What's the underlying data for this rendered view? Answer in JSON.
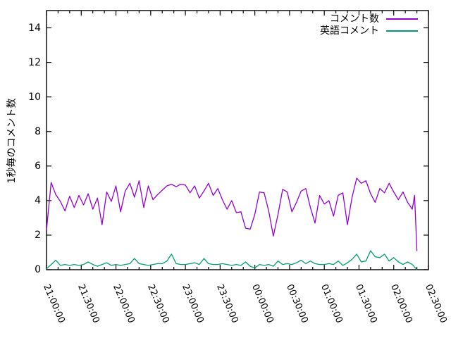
{
  "chart_data": {
    "type": "line",
    "title": "",
    "xlabel": "",
    "ylabel": "1秒毎のコメント数",
    "ylim": [
      0,
      15
    ],
    "yticks": [
      0,
      2,
      4,
      6,
      8,
      10,
      12,
      14
    ],
    "x_minutes_lim": [
      0,
      330
    ],
    "xtick_minutes": [
      0,
      30,
      60,
      90,
      120,
      150,
      180,
      210,
      240,
      270,
      300,
      330
    ],
    "xtick_labels": [
      "21:00:00",
      "21:30:00",
      "22:00:00",
      "22:30:00",
      "23:00:00",
      "23:30:00",
      "00:00:00",
      "00:30:00",
      "01:00:00",
      "01:30:00",
      "02:00:00",
      "02:30:00"
    ],
    "minor_xtick_step_min": 10,
    "grid": false,
    "legend_position": "top-right-inside",
    "axis_color": "#000000",
    "x_minutes": [
      0,
      4,
      8,
      12,
      16,
      20,
      24,
      28,
      32,
      36,
      40,
      44,
      48,
      52,
      56,
      60,
      64,
      68,
      72,
      76,
      80,
      84,
      88,
      92,
      96,
      100,
      104,
      108,
      112,
      116,
      120,
      124,
      128,
      132,
      136,
      140,
      144,
      148,
      152,
      156,
      160,
      164,
      168,
      172,
      176,
      180,
      184,
      188,
      192,
      196,
      200,
      204,
      208,
      212,
      216,
      220,
      224,
      228,
      232,
      236,
      240,
      244,
      248,
      252,
      256,
      260,
      264,
      268,
      272,
      276,
      280,
      284,
      288,
      292,
      296,
      300,
      304,
      308,
      312,
      316,
      318,
      320
    ],
    "series": [
      {
        "name": "コメント数",
        "color": "#9400d3",
        "values": [
          2.3,
          5.05,
          4.35,
          3.95,
          3.4,
          4.25,
          3.6,
          4.3,
          3.75,
          4.4,
          3.5,
          4.15,
          2.6,
          4.5,
          3.95,
          4.85,
          3.35,
          4.55,
          5.0,
          4.2,
          5.15,
          3.6,
          4.85,
          4.05,
          4.35,
          4.6,
          4.85,
          4.95,
          4.8,
          4.95,
          4.9,
          4.45,
          4.85,
          4.15,
          4.55,
          5.0,
          4.3,
          4.7,
          4.05,
          3.5,
          4.0,
          3.3,
          3.35,
          2.4,
          2.35,
          3.2,
          4.5,
          4.45,
          3.4,
          1.95,
          3.2,
          4.65,
          4.5,
          3.35,
          3.9,
          4.55,
          4.7,
          3.6,
          2.7,
          4.3,
          3.8,
          4.0,
          3.1,
          4.3,
          4.45,
          2.6,
          4.2,
          5.3,
          5.0,
          5.15,
          4.4,
          3.9,
          4.7,
          4.45,
          5.0,
          4.5,
          4.05,
          4.5,
          3.9,
          3.5,
          4.3,
          1.1
        ]
      },
      {
        "name": "英語コメント",
        "color": "#009e73",
        "values": [
          0.05,
          0.3,
          0.55,
          0.25,
          0.3,
          0.25,
          0.3,
          0.25,
          0.3,
          0.45,
          0.3,
          0.2,
          0.3,
          0.4,
          0.25,
          0.3,
          0.25,
          0.3,
          0.35,
          0.65,
          0.35,
          0.3,
          0.25,
          0.3,
          0.35,
          0.35,
          0.5,
          0.9,
          0.35,
          0.3,
          0.3,
          0.35,
          0.4,
          0.3,
          0.65,
          0.35,
          0.3,
          0.3,
          0.35,
          0.3,
          0.25,
          0.3,
          0.25,
          0.45,
          0.2,
          0.1,
          0.3,
          0.25,
          0.3,
          0.2,
          0.5,
          0.3,
          0.35,
          0.3,
          0.4,
          0.55,
          0.35,
          0.5,
          0.35,
          0.3,
          0.3,
          0.35,
          0.3,
          0.5,
          0.25,
          0.4,
          0.6,
          0.9,
          0.45,
          0.5,
          1.1,
          0.75,
          0.7,
          0.9,
          0.5,
          0.7,
          0.45,
          0.3,
          0.45,
          0.3,
          0.15,
          0.0
        ]
      }
    ]
  }
}
